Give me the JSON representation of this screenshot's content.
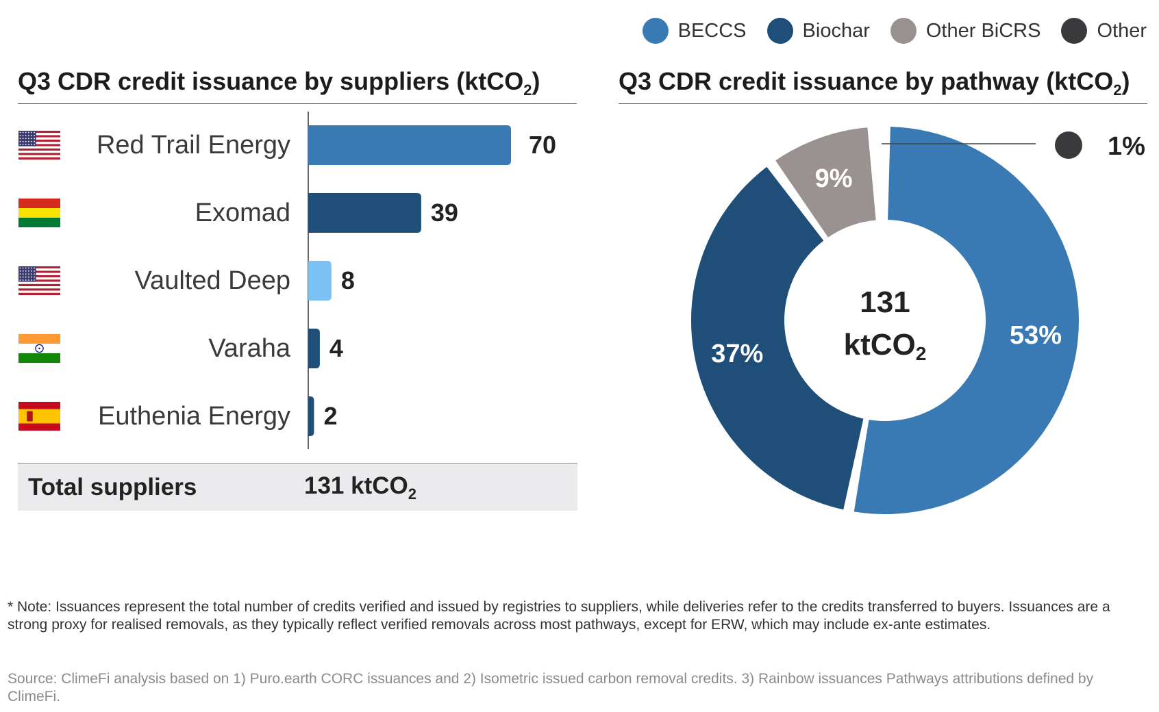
{
  "legend": [
    {
      "label": "BECCS",
      "color": "#3a7ab4"
    },
    {
      "label": "Biochar",
      "color": "#1f4e79"
    },
    {
      "label": "Other BiCRS",
      "color": "#9a9290"
    },
    {
      "label": "Other",
      "color": "#3a3a3c"
    }
  ],
  "titles": {
    "left": "Q3 CDR credit issuance by suppliers (ktCO",
    "left_sub": "2",
    "left_end": ")",
    "right": "Q3 CDR credit issuance by pathway (ktCO",
    "right_sub": "2",
    "right_end": ")"
  },
  "chart_data": [
    {
      "type": "bar",
      "orientation": "horizontal",
      "title": "Q3 CDR credit issuance by suppliers (ktCO2)",
      "categories": [
        "Red Trail Energy",
        "Exomad",
        "Vaulted Deep",
        "Varaha",
        "Euthenia Energy"
      ],
      "values": [
        70,
        39,
        8,
        4,
        2
      ],
      "value_labels": [
        "70",
        "39",
        "8",
        "4",
        "2"
      ],
      "colors": [
        "#3a7ab4",
        "#1f4e79",
        "#7cc1f4",
        "#1f4e79",
        "#1f4e79"
      ],
      "flags": [
        "us-flag-icon",
        "bolivia-flag-icon",
        "us-flag-icon",
        "india-flag-icon",
        "spain-flag-icon"
      ],
      "xlim": [
        0,
        70
      ]
    },
    {
      "type": "pie",
      "variant": "donut",
      "title": "Q3 CDR credit issuance by pathway (ktCO2)",
      "slices": [
        {
          "name": "BECCS",
          "value": 53,
          "label": "53%",
          "color": "#3a7ab4"
        },
        {
          "name": "Biochar",
          "value": 37,
          "label": "37%",
          "color": "#1f4e79"
        },
        {
          "name": "Other BiCRS",
          "value": 9,
          "label": "9%",
          "color": "#9a9290"
        },
        {
          "name": "Other",
          "value": 1,
          "label": "1%",
          "color": "#3a3a3c"
        }
      ],
      "center_value": "131",
      "center_unit": "ktCO",
      "center_unit_sub": "2"
    }
  ],
  "total": {
    "label": "Total suppliers",
    "value": "131 ktCO",
    "value_sub": "2"
  },
  "note": "* Note: Issuances represent the total number of credits verified and issued by registries to suppliers, while deliveries refer to the credits transferred to buyers. Issuances are a strong proxy for realised removals, as they typically reflect verified removals across most pathways, except for ERW, which may include ex-ante estimates.",
  "source": "Source: ClimeFi analysis based on 1) Puro.earth CORC issuances and 2) Isometric issued carbon removal credits. 3) Rainbow issuances  Pathways attributions defined by ClimeFi."
}
